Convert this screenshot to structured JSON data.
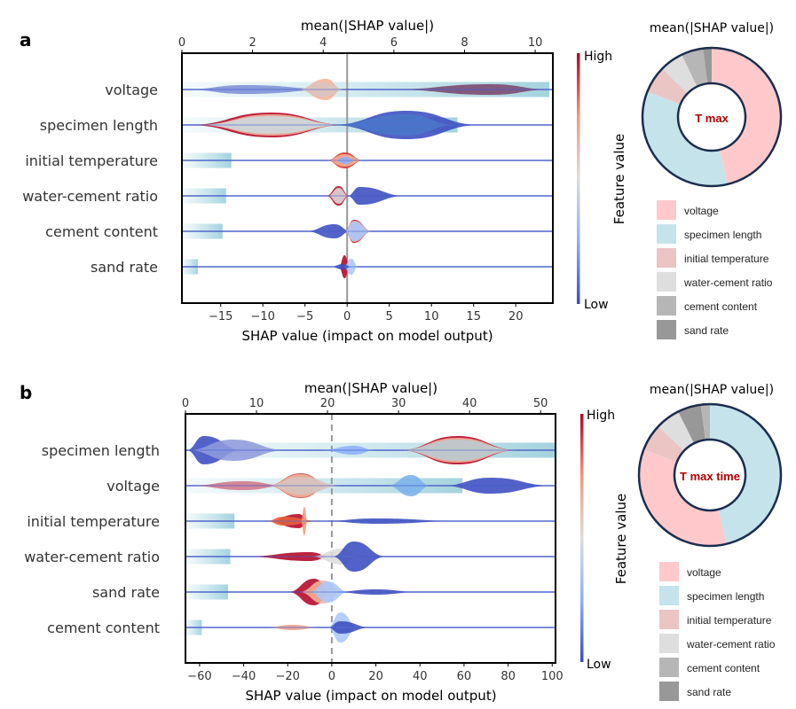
{
  "colorbar": {
    "high_label": "High",
    "low_label": "Low",
    "title": "Feature value",
    "colors": [
      "#3b4cc0",
      "#8db0fe",
      "#dddcdc",
      "#f4987a",
      "#b40426"
    ]
  },
  "chart_data": [
    {
      "panel_label": "a",
      "type": "violin+bar",
      "top_axis_title": "mean(|SHAP value|)",
      "bottom_axis_title": "SHAP value (impact on model output)",
      "top_ticks": [
        0,
        2,
        4,
        6,
        8,
        10
      ],
      "top_lim": [
        0,
        10.5
      ],
      "bottom_ticks": [
        -15,
        -10,
        -5,
        0,
        5,
        10,
        15,
        20
      ],
      "bottom_lim": [
        -19.6,
        24.4
      ],
      "zero_line_style": "solid",
      "features": [
        "voltage",
        "specimen length",
        "initial temperature",
        "water-cement ratio",
        "cement content",
        "sand rate"
      ],
      "mean_abs_shap": [
        10.4,
        7.8,
        1.4,
        1.25,
        1.15,
        0.45
      ],
      "violins": [
        [
          {
            "c": "#7d8fd6",
            "from": -19.6,
            "to": -1,
            "peak": -12,
            "h": 5
          },
          {
            "c": "#f4b49a",
            "from": -6,
            "to": -0.5,
            "peak": -2.5,
            "h": 12
          },
          {
            "c": "#d9c4c0",
            "from": -6,
            "to": 0,
            "peak": -3,
            "h": 8
          },
          {
            "c": "#7a4870",
            "from": 5,
            "to": 24.4,
            "peak": 17,
            "h": 6
          }
        ],
        [
          {
            "c": "#b40426",
            "from": -19,
            "to": 0,
            "peak": -9,
            "h": 14
          },
          {
            "c": "#f4b49a",
            "from": -18,
            "to": 0,
            "peak": -9,
            "h": 12
          },
          {
            "c": "#ccd9df",
            "from": -18,
            "to": 0,
            "peak": -9,
            "h": 10
          },
          {
            "c": "#3b4cc0",
            "from": -2,
            "to": 16,
            "peak": 7,
            "h": 16
          },
          {
            "c": "#4a78c8",
            "from": -2,
            "to": 13,
            "peak": 7,
            "h": 12
          }
        ],
        [
          {
            "c": "#d73027",
            "from": -2.5,
            "to": 2,
            "peak": -0.3,
            "h": 9
          },
          {
            "c": "#f4b49a",
            "from": -2.5,
            "to": 2,
            "peak": -0.3,
            "h": 7
          },
          {
            "c": "#8db0fe",
            "from": -1.5,
            "to": 1,
            "peak": -0.2,
            "h": 4
          }
        ],
        [
          {
            "c": "#b40426",
            "from": -2.5,
            "to": 0.3,
            "peak": -1,
            "h": 11
          },
          {
            "c": "#dddcdc",
            "from": -2.3,
            "to": 0.2,
            "peak": -1,
            "h": 9
          },
          {
            "c": "#3b4cc0",
            "from": 0,
            "to": 7,
            "peak": 1.5,
            "h": 10
          }
        ],
        [
          {
            "c": "#3b4cc0",
            "from": -5,
            "to": 0.5,
            "peak": -1.5,
            "h": 8
          },
          {
            "c": "#b40426",
            "from": -0.3,
            "to": 3,
            "peak": 0.8,
            "h": 13
          },
          {
            "c": "#f4b49a",
            "from": -0.3,
            "to": 3,
            "peak": 0.8,
            "h": 12
          },
          {
            "c": "#aac7fd",
            "from": -0.3,
            "to": 3,
            "peak": 0.8,
            "h": 11
          }
        ],
        [
          {
            "c": "#b40426",
            "from": -1,
            "to": 0.3,
            "peak": -0.3,
            "h": 13
          },
          {
            "c": "#aac7fd",
            "from": -0.5,
            "to": 1.3,
            "peak": 0.5,
            "h": 9
          },
          {
            "c": "#3b4cc0",
            "from": -2,
            "to": 0.5,
            "peak": -0.5,
            "h": 3
          }
        ]
      ],
      "donut": {
        "title": "mean(|SHAP value|)",
        "center_label": "T max",
        "slices": [
          {
            "label": "voltage",
            "value": 10.4,
            "color": "#ffc9cc"
          },
          {
            "label": "specimen length",
            "value": 7.8,
            "color": "#c5e3ea"
          },
          {
            "label": "initial temperature",
            "value": 1.4,
            "color": "#ebc4c4"
          },
          {
            "label": "water-cement ratio",
            "value": 1.25,
            "color": "#dedede"
          },
          {
            "label": "cement content",
            "value": 1.15,
            "color": "#b6b6b6"
          },
          {
            "label": "sand rate",
            "value": 0.45,
            "color": "#989898"
          }
        ]
      },
      "legend": [
        {
          "label": "voltage",
          "color": "#ffc9cc"
        },
        {
          "label": "specimen length",
          "color": "#c5e3ea"
        },
        {
          "label": "initial temperature",
          "color": "#ebc4c4"
        },
        {
          "label": "water-cement ratio",
          "color": "#dedede"
        },
        {
          "label": "cement content",
          "color": "#b6b6b6"
        },
        {
          "label": "sand rate",
          "color": "#989898"
        }
      ]
    },
    {
      "panel_label": "b",
      "type": "violin+bar",
      "top_axis_title": "mean(|SHAP value|)",
      "bottom_axis_title": "SHAP value (impact on model output)",
      "top_ticks": [
        0,
        10,
        20,
        30,
        40,
        50
      ],
      "top_lim": [
        0,
        52.1
      ],
      "bottom_ticks": [
        -60,
        -40,
        -20,
        0,
        20,
        40,
        60,
        80,
        100
      ],
      "bottom_lim": [
        -66.4,
        101.5
      ],
      "zero_line_style": "dashed",
      "features": [
        "specimen length",
        "voltage",
        "initial temperature",
        "water-cement ratio",
        "sand rate",
        "cement content"
      ],
      "mean_abs_shap": [
        52,
        39,
        6.9,
        6.3,
        6,
        2.3
      ],
      "violins": [
        [
          {
            "c": "#3b4cc0",
            "from": -66,
            "to": -40,
            "peak": -58,
            "h": 16
          },
          {
            "c": "#8f9bdc",
            "from": -66,
            "to": -20,
            "peak": -45,
            "h": 12
          },
          {
            "c": "#8db0fe",
            "from": -5,
            "to": 20,
            "peak": 10,
            "h": 5
          },
          {
            "c": "#b40426",
            "from": 30,
            "to": 85,
            "peak": 57,
            "h": 16
          },
          {
            "c": "#f4b49a",
            "from": 30,
            "to": 85,
            "peak": 57,
            "h": 14
          },
          {
            "c": "#b9ccd4",
            "from": 30,
            "to": 85,
            "peak": 57,
            "h": 12
          }
        ],
        [
          {
            "c": "#d0788a",
            "from": -66,
            "to": -20,
            "peak": -40,
            "h": 5
          },
          {
            "c": "#c0504d",
            "from": -30,
            "to": 0,
            "peak": -14,
            "h": 14
          },
          {
            "c": "#f4b49a",
            "from": -30,
            "to": 0,
            "peak": -14,
            "h": 13
          },
          {
            "c": "#d6c4c0",
            "from": -30,
            "to": 5,
            "peak": -14,
            "h": 10
          },
          {
            "c": "#7cb0ec",
            "from": 25,
            "to": 45,
            "peak": 36,
            "h": 12
          },
          {
            "c": "#3b4cc0",
            "from": 50,
            "to": 101,
            "peak": 72,
            "h": 9
          }
        ],
        [
          {
            "c": "#b40426",
            "from": -30,
            "to": -10,
            "peak": -15,
            "h": 8
          },
          {
            "c": "#e8603c",
            "from": -30,
            "to": -5,
            "peak": -22,
            "h": 5
          },
          {
            "c": "#f4987a",
            "from": -14,
            "to": -11,
            "peak": -12.5,
            "h": 16
          },
          {
            "c": "#3b4cc0",
            "from": -5,
            "to": 60,
            "peak": 20,
            "h": 3
          }
        ],
        [
          {
            "c": "#b40426",
            "from": -40,
            "to": 0,
            "peak": -10,
            "h": 5
          },
          {
            "c": "#dddcdc",
            "from": -10,
            "to": 12,
            "peak": 5,
            "h": 9
          },
          {
            "c": "#3b4cc0",
            "from": 0,
            "to": 25,
            "peak": 10,
            "h": 17
          }
        ],
        [
          {
            "c": "#b40426",
            "from": -20,
            "to": 0,
            "peak": -8,
            "h": 15
          },
          {
            "c": "#f4b49a",
            "from": -15,
            "to": 5,
            "peak": -4,
            "h": 13
          },
          {
            "c": "#aac7fd",
            "from": -10,
            "to": 8,
            "peak": -2,
            "h": 12
          },
          {
            "c": "#3b4cc0",
            "from": 0,
            "to": 40,
            "peak": 20,
            "h": 3
          }
        ],
        [
          {
            "c": "#e8a090",
            "from": -30,
            "to": -5,
            "peak": -18,
            "h": 3
          },
          {
            "c": "#aac7fd",
            "from": -2,
            "to": 12,
            "peak": 4,
            "h": 17
          },
          {
            "c": "#3b4cc0",
            "from": -2,
            "to": 18,
            "peak": 4,
            "h": 7
          }
        ]
      ],
      "donut": {
        "title": "mean(|SHAP value|)",
        "center_label": "T max time",
        "slices": [
          {
            "label": "specimen length",
            "value": 52,
            "color": "#c5e3ea"
          },
          {
            "label": "voltage",
            "value": 39,
            "color": "#ffc9cc"
          },
          {
            "label": "initial temperature",
            "value": 6.9,
            "color": "#ebc4c4"
          },
          {
            "label": "water-cement ratio",
            "value": 6.3,
            "color": "#dedede"
          },
          {
            "label": "sand rate",
            "value": 6,
            "color": "#989898"
          },
          {
            "label": "cement content",
            "value": 2.3,
            "color": "#b6b6b6"
          }
        ]
      },
      "legend": [
        {
          "label": "voltage",
          "color": "#ffc9cc"
        },
        {
          "label": "specimen length",
          "color": "#c5e3ea"
        },
        {
          "label": "initial temperature",
          "color": "#ebc4c4"
        },
        {
          "label": "water-cement ratio",
          "color": "#dedede"
        },
        {
          "label": "cement content",
          "color": "#b6b6b6"
        },
        {
          "label": "sand rate",
          "color": "#989898"
        }
      ]
    }
  ]
}
